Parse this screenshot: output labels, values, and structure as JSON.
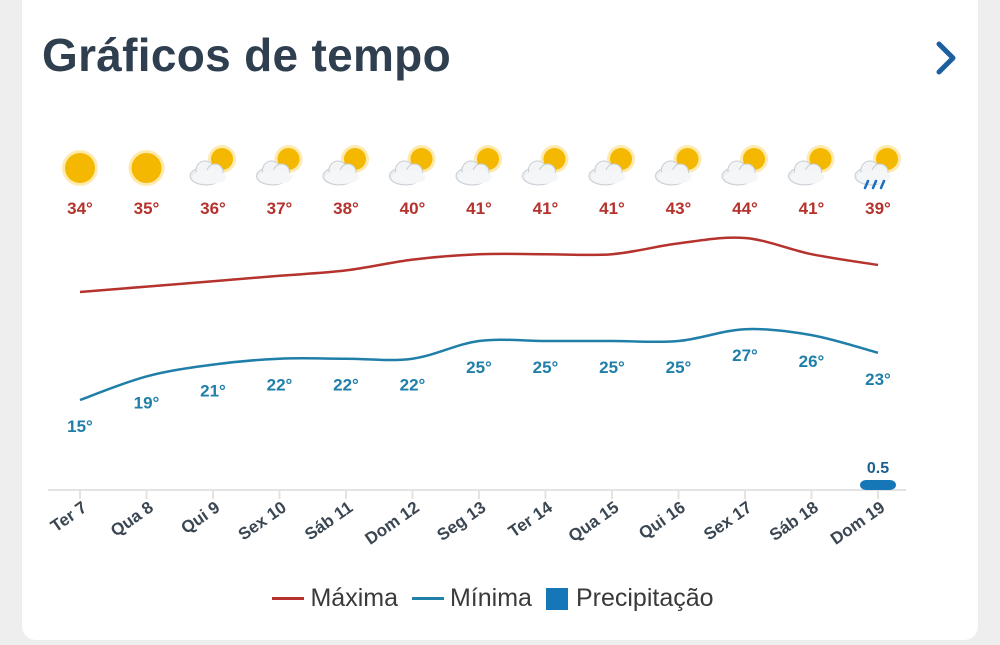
{
  "header": {
    "title": "Gráficos de tempo",
    "next_icon": "chevron-right-icon"
  },
  "colors": {
    "max": "#b5322d",
    "min": "#1f7fa8",
    "precip": "#1576b8",
    "title": "#2f3f4f"
  },
  "legend": {
    "max_label": "Máxima",
    "min_label": "Mínima",
    "precip_label": "Precipitação"
  },
  "chart_data": {
    "type": "line",
    "categories": [
      "Ter 7",
      "Qua 8",
      "Qui 9",
      "Sex 10",
      "Sáb 11",
      "Dom 12",
      "Seg 13",
      "Ter 14",
      "Qua 15",
      "Qui 16",
      "Sex 17",
      "Sáb 18",
      "Dom 19"
    ],
    "icons": [
      "sun-icon",
      "sun-icon",
      "partly-cloudy-icon",
      "partly-cloudy-icon",
      "partly-cloudy-icon",
      "partly-cloudy-icon",
      "partly-cloudy-icon",
      "partly-cloudy-icon",
      "partly-cloudy-icon",
      "partly-cloudy-icon",
      "partly-cloudy-icon",
      "partly-cloudy-icon",
      "rain-cloud-icon"
    ],
    "series": [
      {
        "name": "Máxima",
        "values": [
          34,
          35,
          36,
          37,
          38,
          40,
          41,
          41,
          41,
          43,
          44,
          41,
          39
        ],
        "labels": [
          "34°",
          "35°",
          "36°",
          "37°",
          "38°",
          "40°",
          "41°",
          "41°",
          "41°",
          "43°",
          "44°",
          "41°",
          "39°"
        ]
      },
      {
        "name": "Mínima",
        "values": [
          15,
          19,
          21,
          22,
          22,
          22,
          25,
          25,
          25,
          25,
          27,
          26,
          23
        ],
        "labels": [
          "15°",
          "19°",
          "21°",
          "22°",
          "22°",
          "22°",
          "25°",
          "25°",
          "25°",
          "25°",
          "27°",
          "26°",
          "23°"
        ]
      },
      {
        "name": "Precipitação",
        "values": [
          0,
          0,
          0,
          0,
          0,
          0,
          0,
          0,
          0,
          0,
          0,
          0,
          0.5
        ],
        "labels": [
          "",
          "",
          "",
          "",
          "",
          "",
          "",
          "",
          "",
          "",
          "",
          "",
          "0.5"
        ]
      }
    ],
    "grid": false,
    "legend_position": "bottom"
  }
}
